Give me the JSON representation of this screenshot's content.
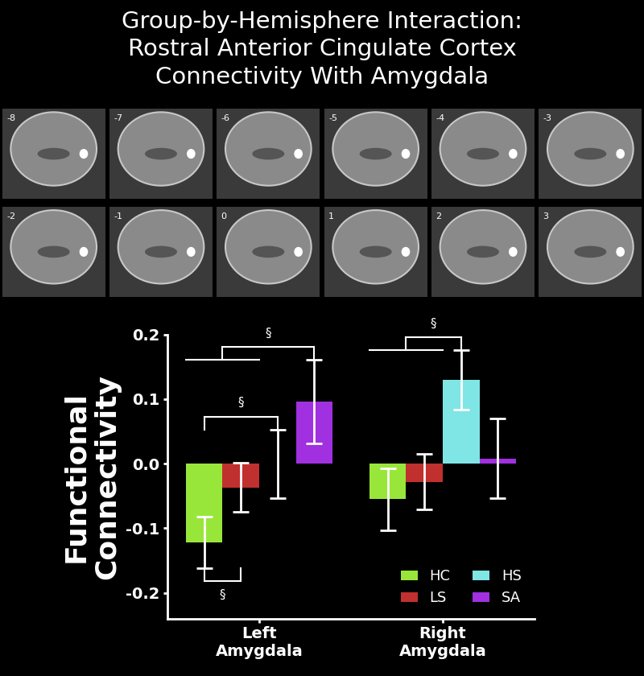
{
  "chart_data": {
    "type": "bar",
    "title": "Group-by-Hemisphere Interaction:\nRostral Anterior Cingulate Cortex\nConnectivity With Amygdala",
    "slices": [
      -8,
      -7,
      -6,
      -5,
      -4,
      -3,
      -2,
      -1,
      0,
      1,
      2,
      3
    ],
    "y_label": "Functional\nConnectivity",
    "categories": [
      "Left\nAmygdala",
      "Right\nAmygdala"
    ],
    "series": [
      {
        "name": "HC",
        "color": "#99e63a",
        "values": [
          -0.122,
          -0.055
        ],
        "errors": [
          0.04,
          0.048
        ]
      },
      {
        "name": "LS",
        "color": "#c0302f",
        "values": [
          -0.037,
          -0.028
        ],
        "errors": [
          0.038,
          0.043
        ]
      },
      {
        "name": "HS",
        "color": "#80e5e5",
        "values": [
          0.0,
          0.13
        ],
        "errors": [
          0.053,
          0.046
        ]
      },
      {
        "name": "SA",
        "color": "#a030e0",
        "values": [
          0.096,
          0.008
        ],
        "errors": [
          0.065,
          0.062
        ]
      }
    ],
    "annotations": [
      {
        "text": "§",
        "category": "Left\nAmygdala",
        "left": [
          "HC",
          "LS"
        ],
        "right": [
          "SA"
        ]
      },
      {
        "text": "§",
        "category": "Left\nAmygdala",
        "left": [
          "HC"
        ],
        "right": [
          "HS"
        ]
      },
      {
        "text": "§",
        "category": "Left\nAmygdala",
        "left": [
          "HC"
        ],
        "right": [
          "LS"
        ]
      },
      {
        "text": "§",
        "category": "Right\nAmygdala",
        "left": [
          "HC",
          "LS"
        ],
        "right": [
          "HS"
        ]
      }
    ],
    "ylim": [
      -0.24,
      0.2
    ],
    "yticks": [
      -0.2,
      -0.1,
      {
        "value": 0,
        "label": "0.0"
      },
      0.1,
      0.2
    ],
    "legend": "lower right"
  }
}
